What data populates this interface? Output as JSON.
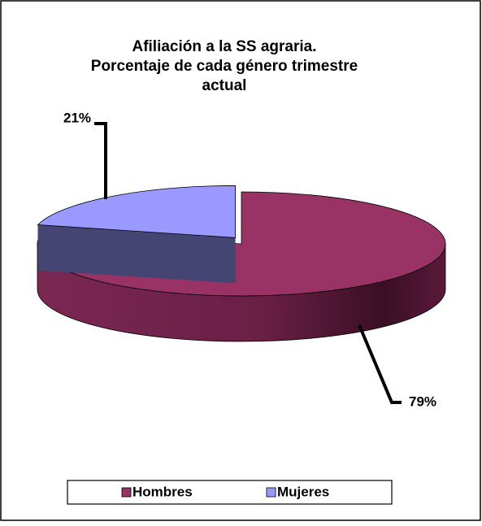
{
  "chart_data": {
    "type": "pie",
    "title": [
      "Afiliación a la SS agraria.",
      "Porcentaje de cada género trimestre",
      "actual"
    ],
    "categories": [
      "Hombres",
      "Mujeres"
    ],
    "values": [
      79,
      21
    ],
    "value_labels": [
      "79%",
      "21%"
    ],
    "colors": [
      "#993366",
      "#9999ff"
    ],
    "legend": "bottom"
  }
}
